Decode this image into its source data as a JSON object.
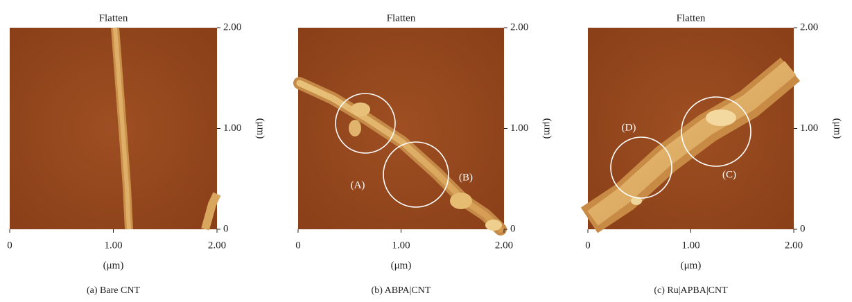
{
  "panels": [
    {
      "title": "Flatten",
      "caption": "(a)  Bare CNT",
      "xticks": [
        "0",
        "1.00",
        "2.00"
      ],
      "yticks": [
        "0",
        "1.00",
        "2.00"
      ],
      "xlabel": "(μm)",
      "ylabel": "(μm)",
      "annotations": []
    },
    {
      "title": "Flatten",
      "caption": "(b)  ABPA|CNT",
      "xticks": [
        "0",
        "1.00",
        "2.00"
      ],
      "yticks": [
        "0",
        "1.00",
        "2.00"
      ],
      "xlabel": "(μm)",
      "ylabel": "(μm)",
      "annotations": [
        "(A)",
        "(B)"
      ]
    },
    {
      "title": "Flatten",
      "caption": "(c)  Ru|APBA|CNT",
      "xticks": [
        "0",
        "1.00",
        "2.00"
      ],
      "yticks": [
        "0",
        "1.00",
        "2.00"
      ],
      "xlabel": "(μm)",
      "ylabel": "(μm)",
      "annotations": [
        "(C)",
        "(D)"
      ]
    }
  ]
}
